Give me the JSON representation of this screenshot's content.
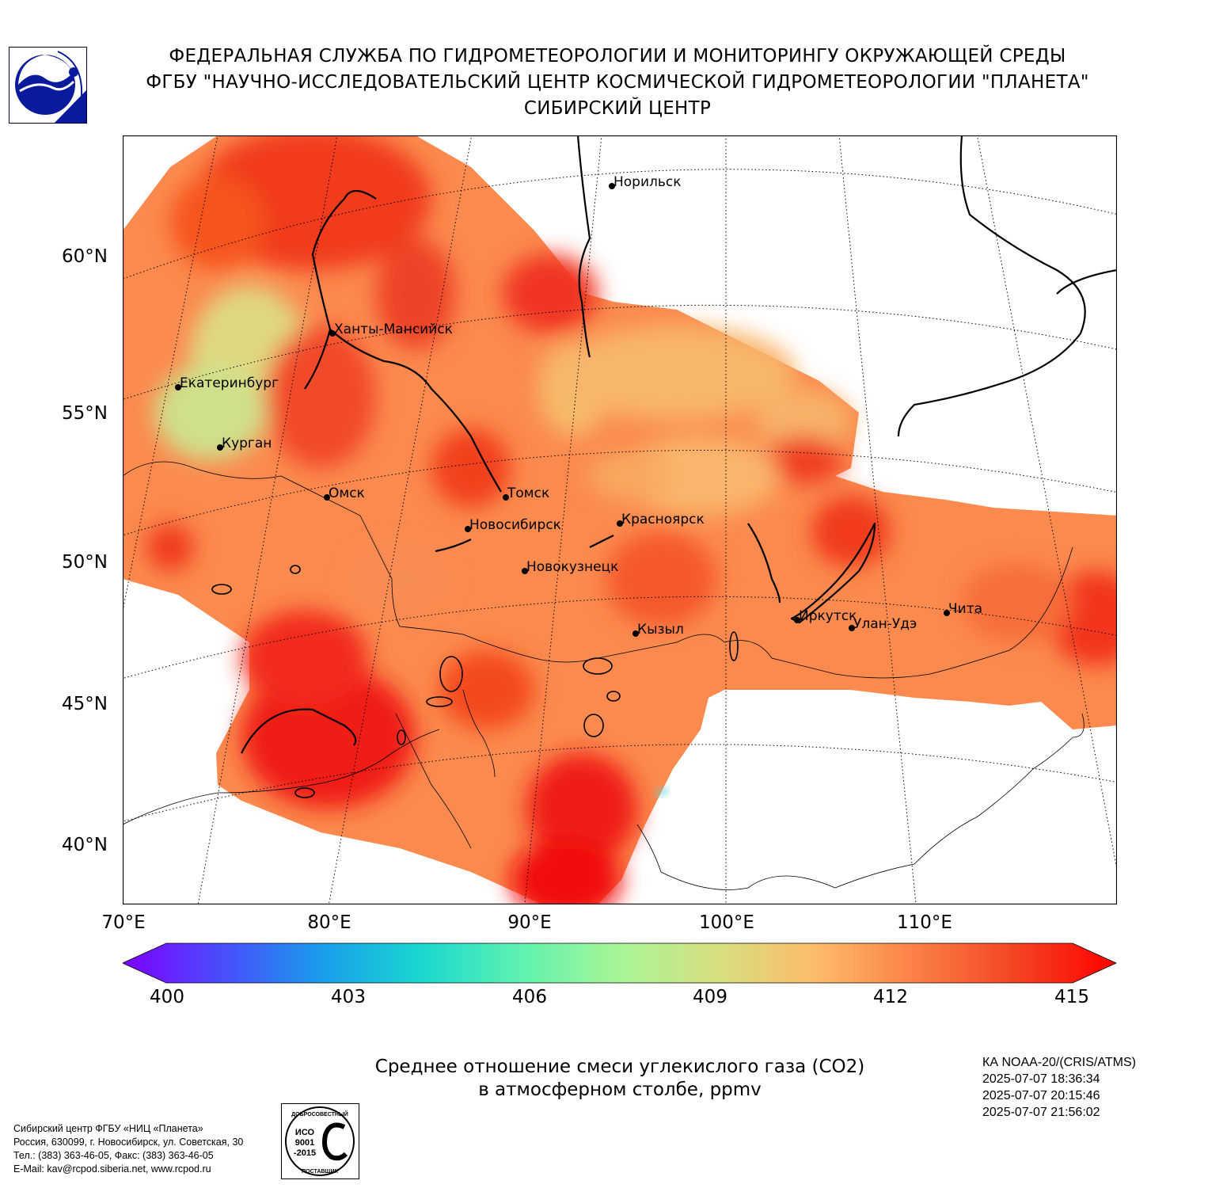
{
  "header": {
    "line1": "ФЕДЕРАЛЬНАЯ СЛУЖБА ПО ГИДРОМЕТЕОРОЛОГИИ И МОНИТОРИНГУ ОКРУЖАЮЩЕЙ СРЕДЫ",
    "line2": "ФГБУ \"НАУЧНО-ИССЛЕДОВАТЕЛЬСКИЙ ЦЕНТР КОСМИЧЕСКОЙ ГИДРОМЕТЕОРОЛОГИИ \"ПЛАНЕТА\"",
    "line3": "СИБИРСКИЙ ЦЕНТР"
  },
  "map": {
    "lat_labels": [
      "60°N",
      "55°N",
      "50°N",
      "45°N",
      "40°N"
    ],
    "lon_labels": [
      "70°E",
      "80°E",
      "90°E",
      "100°E",
      "110°E"
    ],
    "cities": [
      "Норильск",
      "Ханты-Мансийск",
      "Екатеринбург",
      "Курган",
      "Омск",
      "Томск",
      "Новосибирск",
      "Красноярск",
      "Новокузнецк",
      "Кызыл",
      "Иркутск",
      "Улан-Удэ",
      "Чита"
    ]
  },
  "colorbar": {
    "ticks": [
      "400",
      "403",
      "406",
      "409",
      "412",
      "415"
    ],
    "min": 400,
    "max": 415,
    "colors": [
      "#7f00ff",
      "#4a4dfc",
      "#1a9ded",
      "#19d8d0",
      "#5ef2b0",
      "#a8f596",
      "#d7df80",
      "#fdba6a",
      "#fb7e46",
      "#f44323",
      "#ff0000"
    ]
  },
  "title": {
    "line1": "Среднее отношение смеси углекислого газа (CO2)",
    "line2": "в атмосферном столбе, ppmv"
  },
  "satellite": {
    "name": "КА NOAA-20/(CRIS/ATMS)",
    "passes": [
      "2025-07-07 18:36:34",
      "2025-07-07 20:15:46",
      "2025-07-07 21:56:02"
    ]
  },
  "contact": {
    "line1": "Сибирский центр ФГБУ «НИЦ «Планета»",
    "line2": "Россия, 630099, г. Новосибирск, ул. Советская, 30",
    "line3": "Тел.: (383) 363-46-05, Факс: (383) 363-46-05",
    "line4": "E-Mail: kav@rcpod.siberia.net, www.rcpod.ru"
  },
  "stamp": {
    "top": "ДОБРОСОВЕСТНЫЙ",
    "iso1": "ИСО",
    "iso2": "9001",
    "iso3": "-2015",
    "bottom": "ПОСТАВЩИК"
  },
  "logo_icon": "planeta-logo"
}
